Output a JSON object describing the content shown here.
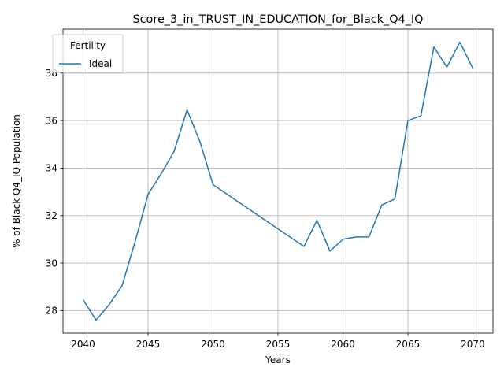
{
  "chart_data": {
    "type": "line",
    "title": "Score_3_in_TRUST_IN_EDUCATION_for_Black_Q4_IQ",
    "xlabel": "Years",
    "ylabel": "% of Black Q4_IQ Population",
    "xlim": [
      2038.45,
      2071.55
    ],
    "ylim": [
      27.05,
      39.85
    ],
    "xticks": [
      2040,
      2045,
      2050,
      2055,
      2060,
      2065,
      2070
    ],
    "yticks": [
      28,
      30,
      32,
      34,
      36,
      38
    ],
    "grid": true,
    "legend": {
      "title": "Fertility",
      "position": "top-left"
    },
    "series": [
      {
        "name": "Ideal",
        "color": "#1f77b4",
        "x": [
          2040,
          2041,
          2042,
          2043,
          2044,
          2045,
          2046,
          2047,
          2048,
          2049,
          2050,
          2057,
          2058,
          2059,
          2060,
          2061,
          2062,
          2063,
          2064,
          2065,
          2066,
          2067,
          2068,
          2069,
          2070
        ],
        "y": [
          28.45,
          27.6,
          28.25,
          29.05,
          30.9,
          32.9,
          33.75,
          34.7,
          36.45,
          35.1,
          33.3,
          30.7,
          31.8,
          30.5,
          31.0,
          31.1,
          31.1,
          32.45,
          32.7,
          36.0,
          36.2,
          39.1,
          38.25,
          39.3,
          38.2
        ]
      }
    ]
  }
}
